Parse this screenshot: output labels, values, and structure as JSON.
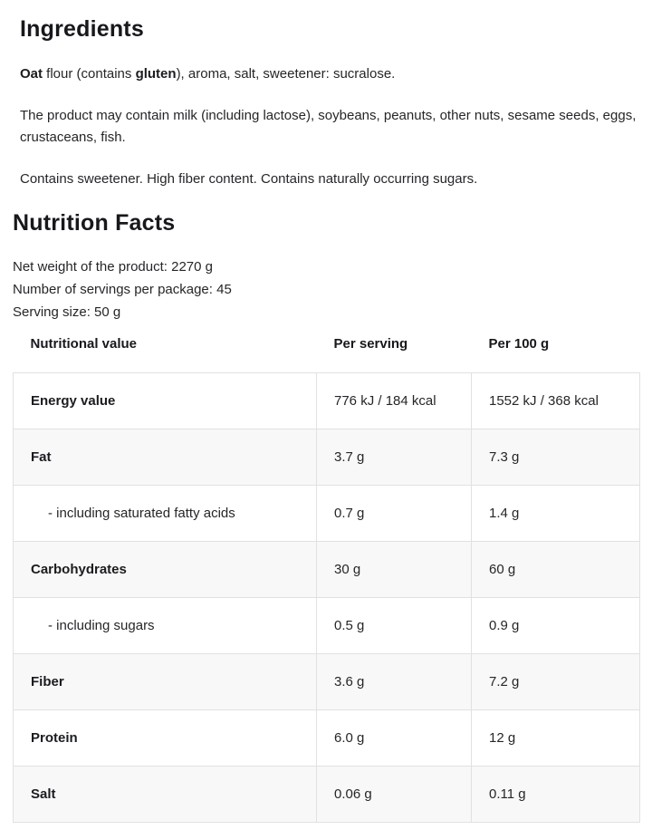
{
  "colors": {
    "text": "#26262a",
    "heading": "#17181c",
    "row_stripe": "#f8f8f8",
    "table_border": "#e1e1e1"
  },
  "ingredients": {
    "title": "Ingredients",
    "composition": {
      "part1": "Oat",
      "part2": " flour (contains ",
      "part3": "gluten",
      "part4": "), aroma, salt, sweetener: sucralose."
    },
    "may_contain": "The product may contain milk (including lactose), soybeans, peanuts, other nuts, sesame seeds, eggs, crustaceans, fish.",
    "notes": "Contains sweetener. High fiber content. Contains naturally occurring sugars."
  },
  "nutrition": {
    "title": "Nutrition Facts",
    "meta": {
      "net_weight": "Net weight of the product: 2270 g",
      "servings": "Number of servings per package: 45",
      "serving_size": "Serving size: 50 g"
    },
    "table": {
      "headers": [
        "Nutritional value",
        "Per serving",
        "Per 100 g"
      ],
      "rows": [
        {
          "label": "Energy value",
          "per_serving": "776 kJ / 184 kcal",
          "per_100g": "1552 kJ / 368 kcal",
          "sub": false
        },
        {
          "label": "Fat",
          "per_serving": "3.7 g",
          "per_100g": "7.3 g",
          "sub": false
        },
        {
          "label": "- including saturated fatty acids",
          "per_serving": "0.7 g",
          "per_100g": "1.4 g",
          "sub": true
        },
        {
          "label": "Carbohydrates",
          "per_serving": "30 g",
          "per_100g": "60 g",
          "sub": false
        },
        {
          "label": "- including sugars",
          "per_serving": "0.5 g",
          "per_100g": "0.9 g",
          "sub": true
        },
        {
          "label": "Fiber",
          "per_serving": "3.6 g",
          "per_100g": "7.2 g",
          "sub": false
        },
        {
          "label": "Protein",
          "per_serving": "6.0 g",
          "per_100g": "12 g",
          "sub": false
        },
        {
          "label": "Salt",
          "per_serving": "0.06 g",
          "per_100g": "0.11 g",
          "sub": false
        }
      ]
    }
  }
}
